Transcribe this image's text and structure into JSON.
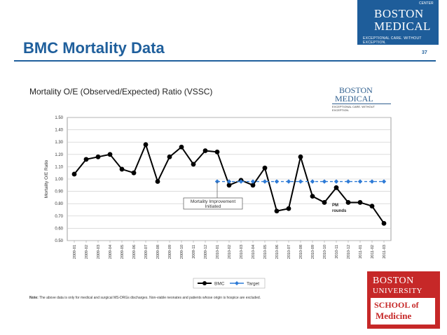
{
  "slide": {
    "title": "BMC Mortality Data",
    "page_number": "37"
  },
  "logos": {
    "bmc": {
      "line1": "BOSTON",
      "line2": "MEDICAL",
      "corner": "CENTER",
      "tagline": "EXCEPTIONAL CARE. WITHOUT EXCEPTION."
    },
    "bu": {
      "line1": "BOSTON",
      "line2": "UNIVERSITY",
      "line3": "SCHOOL of",
      "line4": "Medicine"
    }
  },
  "note": {
    "label": "Note:",
    "text": "The above data is only for medical and surgical MS-DRGs discharges.  Non-viable neonates and patients whose origin is hospice are excluded."
  },
  "colors": {
    "brand_blue": "#1f5f9c",
    "bmc_series": "#000000",
    "target_series": "#2e7bd6",
    "bu_red": "#c62828"
  },
  "chart_data": {
    "type": "line",
    "title": "Mortality O/E (Observed/Expected) Ratio (VSSC)",
    "ylabel": "Mortality O/E Ratio",
    "xlabel": "",
    "ylim": [
      0.5,
      1.5
    ],
    "yticks": [
      "0.50",
      "0.60",
      "0.70",
      "0.80",
      "0.90",
      "1.00",
      "1.10",
      "1.20",
      "1.30",
      "1.40",
      "1.50"
    ],
    "grid": true,
    "legend_position": "bottom",
    "categories": [
      "2009-01",
      "2009-02",
      "2009-03",
      "2009-04",
      "2009-05",
      "2009-06",
      "2009-07",
      "2009-08",
      "2009-09",
      "2009-10",
      "2009-11",
      "2009-12",
      "2010-01",
      "2010-02",
      "2010-03",
      "2010-04",
      "2010-05",
      "2010-06",
      "2010-07",
      "2010-08",
      "2010-09",
      "2010-10",
      "2010-11",
      "2010-12",
      "2011-01",
      "2011-02",
      "2011-03"
    ],
    "series": [
      {
        "name": "BMC",
        "color": "#000000",
        "marker": "circle",
        "values": [
          1.04,
          1.16,
          1.18,
          1.2,
          1.08,
          1.05,
          1.28,
          0.98,
          1.18,
          1.26,
          1.12,
          1.23,
          1.22,
          0.95,
          0.99,
          0.95,
          1.09,
          0.74,
          0.76,
          1.18,
          0.86,
          0.81,
          0.93,
          0.81,
          0.81,
          0.78,
          0.64
        ]
      },
      {
        "name": "Target",
        "color": "#2e7bd6",
        "marker": "diamond",
        "values": [
          null,
          null,
          null,
          null,
          null,
          null,
          null,
          null,
          null,
          null,
          null,
          null,
          0.98,
          0.98,
          0.98,
          0.98,
          0.98,
          0.98,
          0.98,
          0.98,
          0.98,
          0.98,
          0.98,
          0.98,
          0.98,
          0.98,
          0.98
        ]
      }
    ],
    "annotations": [
      {
        "text_line1": "Mortality Improvement",
        "text_line2": "Initiated",
        "x": "2010-01"
      },
      {
        "text_line1": "PM",
        "text_line2": "rounds",
        "x": "2010-10"
      }
    ]
  }
}
